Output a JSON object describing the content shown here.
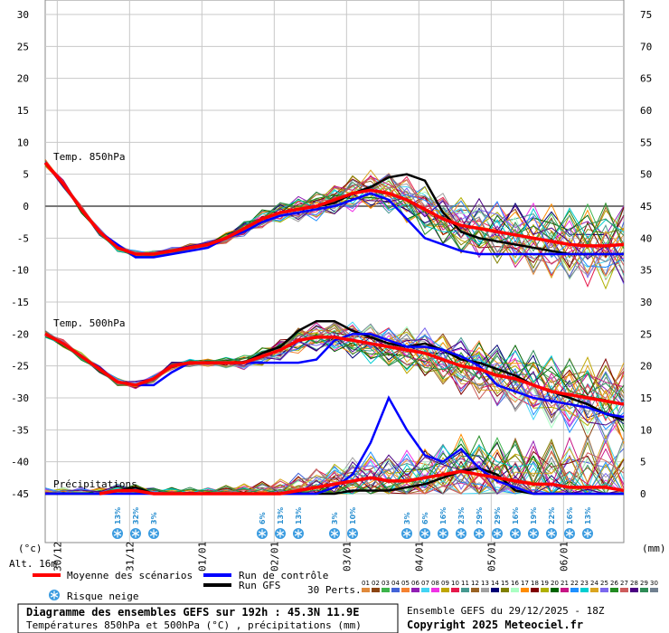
{
  "chart_data": {
    "type": "line",
    "y_left": {
      "min": -45,
      "max": 30,
      "ticks": [
        30,
        25,
        20,
        15,
        10,
        5,
        0,
        -5,
        -10,
        -15,
        -20,
        -25,
        -30,
        -35,
        -40,
        -45
      ],
      "unit_label": "(°c)"
    },
    "y_right": {
      "min": 0,
      "max": 75,
      "ticks": [
        75,
        70,
        65,
        60,
        55,
        50,
        45,
        40,
        35,
        30,
        25,
        20,
        15,
        10,
        5,
        0
      ],
      "unit_label": "(mm)"
    },
    "x": {
      "hours": [
        0,
        6,
        12,
        18,
        24,
        30,
        36,
        42,
        48,
        54,
        60,
        66,
        72,
        78,
        84,
        90,
        96,
        102,
        108,
        114,
        120,
        126,
        132,
        138,
        144,
        150,
        156,
        162,
        168,
        174,
        180,
        186,
        192
      ]
    },
    "date_ticks": [
      {
        "label": "30/12",
        "hour": 4
      },
      {
        "label": "31/12",
        "hour": 28
      },
      {
        "label": "01/01",
        "hour": 52
      },
      {
        "label": "02/01",
        "hour": 76
      },
      {
        "label": "03/01",
        "hour": 100
      },
      {
        "label": "04/01",
        "hour": 124
      },
      {
        "label": "05/01",
        "hour": 148
      },
      {
        "label": "06/01",
        "hour": 172
      }
    ],
    "altitude_label": "Alt. 16m",
    "annotations": {
      "t850": "Temp. 850hPa",
      "t500": "Temp. 500hPa",
      "precip": "Précipitations"
    },
    "series": [
      {
        "name": "Moyenne des scénarios",
        "color": "#ff0000",
        "t850": [
          6.8,
          3.5,
          -0.5,
          -4,
          -6.5,
          -7.5,
          -7.5,
          -7,
          -6.5,
          -6,
          -5,
          -3.5,
          -2,
          -1,
          -0.5,
          0,
          1,
          2,
          2.5,
          2,
          1,
          -0.5,
          -2,
          -3,
          -3.5,
          -4,
          -4.5,
          -5,
          -5.5,
          -6,
          -6.2,
          -6.2,
          -6
        ],
        "t500": [
          -20,
          -21.5,
          -23.5,
          -25.5,
          -27.5,
          -28,
          -27,
          -25,
          -24.5,
          -24.5,
          -24.5,
          -24.5,
          -23.5,
          -22.5,
          -21,
          -20.5,
          -20.5,
          -21,
          -21.5,
          -22,
          -22.5,
          -23,
          -24,
          -25,
          -25.5,
          -26.5,
          -27,
          -28,
          -29,
          -29.5,
          -30,
          -30.5,
          -31
        ],
        "precip": [
          0,
          0,
          0,
          0,
          0.5,
          0.5,
          0,
          0,
          0,
          0,
          0,
          0,
          0,
          0,
          0.5,
          1,
          1.5,
          2,
          2.5,
          2,
          2,
          2.5,
          3,
          3.5,
          3,
          2.5,
          2,
          1.5,
          1.5,
          1,
          1,
          1,
          0.5
        ]
      },
      {
        "name": "Run de contrôle",
        "color": "#0000ff",
        "t850": [
          6.8,
          3.5,
          -0.5,
          -4,
          -6,
          -8,
          -8,
          -7.5,
          -7,
          -6.5,
          -5,
          -4,
          -2.5,
          -1.5,
          -1,
          -0.5,
          0,
          1,
          2,
          1,
          -2,
          -5,
          -6,
          -7,
          -7.5,
          -7.5,
          -7.5,
          -7.5,
          -7.5,
          -7.5,
          -7.5,
          -7.5,
          -7.5
        ],
        "t500": [
          -20,
          -21.5,
          -23.5,
          -25.5,
          -27.5,
          -28,
          -28,
          -26,
          -24.5,
          -24.5,
          -24.5,
          -24.5,
          -24.5,
          -24.5,
          -24.5,
          -24,
          -21,
          -20,
          -20,
          -21,
          -22,
          -22,
          -22.5,
          -23.5,
          -25,
          -28,
          -29,
          -30,
          -30.5,
          -31,
          -31.5,
          -32.5,
          -33
        ],
        "precip": [
          0,
          0,
          0,
          0,
          0,
          0,
          0,
          0,
          0,
          0,
          0,
          0,
          0,
          0,
          0,
          0,
          1,
          3,
          8,
          15,
          10,
          6,
          5,
          7,
          4,
          2,
          1,
          0,
          0,
          0,
          0,
          0,
          0
        ]
      },
      {
        "name": "Run GFS",
        "color": "#000000",
        "t850": [
          6.8,
          3.5,
          -0.5,
          -4,
          -6.5,
          -7.5,
          -7.5,
          -7,
          -6.5,
          -6,
          -5,
          -3.5,
          -2,
          -1,
          -0.5,
          0,
          0.5,
          2,
          3,
          4.5,
          5,
          4,
          -1,
          -4,
          -5,
          -5.5,
          -6,
          -6.5,
          -7,
          -7.5,
          -7.5,
          -7.5,
          -7.5
        ],
        "t500": [
          -20,
          -21.5,
          -23.5,
          -25.5,
          -27.5,
          -28,
          -27,
          -25,
          -24.5,
          -24.5,
          -24.5,
          -24.5,
          -23,
          -22,
          -19.5,
          -18,
          -18,
          -19.5,
          -20.5,
          -21.5,
          -22,
          -21.5,
          -22.5,
          -24,
          -24.5,
          -25.5,
          -26.5,
          -28,
          -29,
          -30,
          -31,
          -32.5,
          -33.5
        ],
        "precip": [
          0,
          0,
          0,
          0,
          0.5,
          1,
          0,
          0,
          0,
          0,
          0,
          0,
          0,
          0,
          0,
          0,
          0,
          0.5,
          0.5,
          0.5,
          1,
          1.5,
          2.5,
          3.5,
          4,
          3,
          0.5,
          0,
          0,
          0,
          0,
          0,
          0
        ]
      }
    ],
    "member_colors": [
      "#e08a3c",
      "#8b4513",
      "#3cb44b",
      "#4363d8",
      "#f58231",
      "#911eb4",
      "#42d4f4",
      "#f032e6",
      "#bfa600",
      "#e6194b",
      "#469990",
      "#9a6324",
      "#a0a0a0",
      "#000075",
      "#808000",
      "#aaffc3",
      "#ff8c00",
      "#800000",
      "#b0b000",
      "#006400",
      "#c71585",
      "#1e90ff",
      "#00ced1",
      "#daa520",
      "#7b68ee",
      "#228b22",
      "#cd5c5c",
      "#4b0082",
      "#2e8b57",
      "#708090"
    ],
    "snow_risk": [
      {
        "hour": 24,
        "pct": "13%"
      },
      {
        "hour": 30,
        "pct": "32%"
      },
      {
        "hour": 36,
        "pct": "3%"
      },
      {
        "hour": 72,
        "pct": "6%"
      },
      {
        "hour": 78,
        "pct": "13%"
      },
      {
        "hour": 84,
        "pct": "13%"
      },
      {
        "hour": 96,
        "pct": "3%"
      },
      {
        "hour": 102,
        "pct": "10%"
      },
      {
        "hour": 120,
        "pct": "3%"
      },
      {
        "hour": 126,
        "pct": "6%"
      },
      {
        "hour": 132,
        "pct": "16%"
      },
      {
        "hour": 138,
        "pct": "23%"
      },
      {
        "hour": 144,
        "pct": "29%"
      },
      {
        "hour": 150,
        "pct": "29%"
      },
      {
        "hour": 156,
        "pct": "16%"
      },
      {
        "hour": 162,
        "pct": "19%"
      },
      {
        "hour": 168,
        "pct": "22%"
      },
      {
        "hour": 174,
        "pct": "16%"
      },
      {
        "hour": 180,
        "pct": "13%"
      }
    ]
  },
  "legend": {
    "mean": "Moyenne des scénarios",
    "control": "Run de contrôle",
    "gfs": "Run GFS",
    "snow": "Risque neige",
    "perts": "30 Perts.",
    "pert_numbers": [
      "01",
      "02",
      "03",
      "04",
      "05",
      "06",
      "07",
      "08",
      "09",
      "10",
      "11",
      "12",
      "13",
      "14",
      "15",
      "16",
      "17",
      "18",
      "19",
      "20",
      "21",
      "22",
      "23",
      "24",
      "25",
      "26",
      "27",
      "28",
      "29",
      "30"
    ]
  },
  "footer": {
    "title": "Diagramme des ensembles GEFS sur 192h : 45.3N 11.9E",
    "subtitle": "Températures 850hPa et 500hPa (°C) , précipitations (mm)",
    "run": "Ensemble GEFS du 29/12/2025 - 18Z",
    "copyright": "Copyright 2025 Meteociel.fr"
  }
}
